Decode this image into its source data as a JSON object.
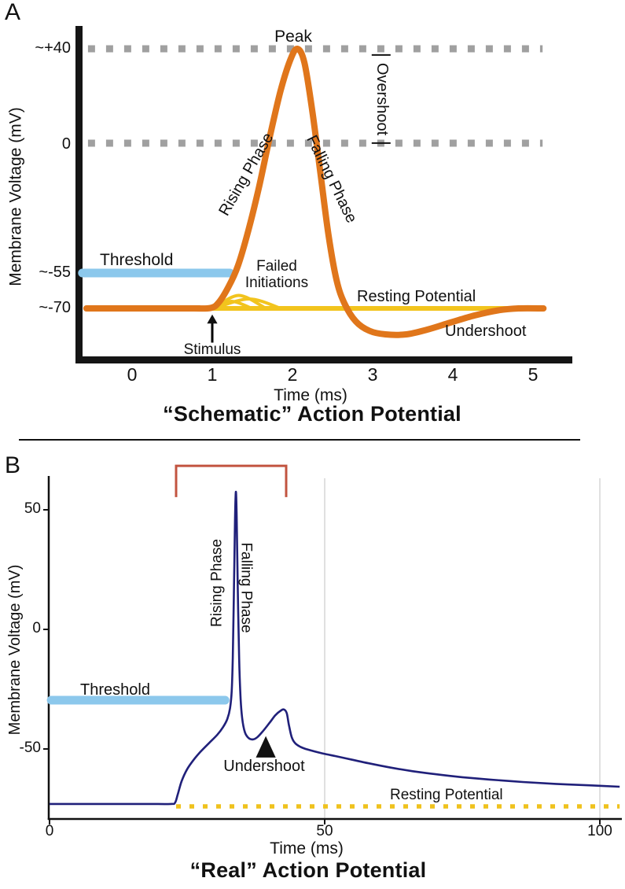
{
  "figure": {
    "panel_a_letter": "A",
    "panel_b_letter": "B"
  },
  "colors": {
    "ap_orange": "#E0761B",
    "resting_yellow": "#F2C41D",
    "threshold_blue": "#8CC8EC",
    "dotted_gray": "#A0A0A0",
    "trace_navy": "#20207A",
    "stimulus_red": "#C25440",
    "grid_gray": "#CFCFCF",
    "axis_black": "#151515"
  },
  "chart_data": [
    {
      "id": "schematic-action-potential",
      "type": "line",
      "title": "“Schematic” Action Potential",
      "xlabel": "Time (ms)",
      "ylabel": "Membrane Voltage (mV)",
      "x_ticks": [
        "0",
        "1",
        "2",
        "3",
        "4",
        "5"
      ],
      "x_tick_values": [
        0,
        1,
        2,
        3,
        4,
        5
      ],
      "y_ticks": [
        "~+40",
        "0",
        "~-55",
        "~-70"
      ],
      "y_tick_values": [
        40,
        0,
        -55,
        -70
      ],
      "xlim": [
        -0.6,
        5.3
      ],
      "ylim": [
        -92,
        46
      ],
      "grid": "dotted horizontal reference lines at +40 mV and 0 mV",
      "legend": "none",
      "annotations": {
        "peak": "Peak",
        "rising_phase": "Rising Phase",
        "falling_phase": "Falling Phase",
        "overshoot": "Overshoot",
        "threshold": "Threshold",
        "failed_initiations": "Failed\nInitiations",
        "resting_potential": "Resting Potential",
        "undershoot": "Undershoot",
        "stimulus": "Stimulus"
      },
      "series": [
        {
          "name": "overshoot-reference-dots",
          "color": "#A0A0A0",
          "points": [
            [
              -0.55,
              40
            ],
            [
              5.12,
              40
            ]
          ]
        },
        {
          "name": "zero-reference-dots",
          "color": "#A0A0A0",
          "points": [
            [
              -0.55,
              0
            ],
            [
              5.12,
              0
            ]
          ]
        },
        {
          "name": "threshold-bar",
          "color": "#8CC8EC",
          "level_mV": -55,
          "points": [
            [
              -0.62,
              -55
            ],
            [
              1.22,
              -55
            ]
          ]
        },
        {
          "name": "resting-potential-line",
          "color": "#F2C41D",
          "level_mV": -70,
          "points": [
            [
              1.0,
              -70
            ],
            [
              5.13,
              -70
            ]
          ]
        },
        {
          "name": "failed-initiation-1",
          "color": "#F2C41D",
          "points": [
            [
              1.03,
              -69.8
            ],
            [
              1.24,
              -67
            ],
            [
              1.48,
              -69.8
            ]
          ]
        },
        {
          "name": "failed-initiation-2",
          "color": "#F2C41D",
          "points": [
            [
              1.03,
              -69.8
            ],
            [
              1.33,
              -64.5
            ],
            [
              1.66,
              -69.8
            ]
          ]
        },
        {
          "name": "failed-initiation-3",
          "color": "#F2C41D",
          "points": [
            [
              1.04,
              -69.8
            ],
            [
              1.46,
              -66
            ],
            [
              1.84,
              -69.8
            ]
          ]
        },
        {
          "name": "action-potential",
          "color": "#E0761B",
          "points": [
            [
              -0.57,
              -70
            ],
            [
              0.2,
              -70
            ],
            [
              0.75,
              -70
            ],
            [
              0.98,
              -69.8
            ],
            [
              1.08,
              -67.5
            ],
            [
              1.2,
              -61
            ],
            [
              1.32,
              -52
            ],
            [
              1.45,
              -37
            ],
            [
              1.58,
              -19
            ],
            [
              1.72,
              3
            ],
            [
              1.85,
              22
            ],
            [
              1.97,
              35
            ],
            [
              2.06,
              40
            ],
            [
              2.15,
              34
            ],
            [
              2.25,
              13
            ],
            [
              2.35,
              -13
            ],
            [
              2.45,
              -39
            ],
            [
              2.55,
              -58
            ],
            [
              2.65,
              -68
            ],
            [
              2.79,
              -75.5
            ],
            [
              2.96,
              -79.5
            ],
            [
              3.16,
              -81
            ],
            [
              3.42,
              -81
            ],
            [
              3.68,
              -79
            ],
            [
              3.97,
              -76
            ],
            [
              4.27,
              -73
            ],
            [
              4.57,
              -70.8
            ],
            [
              4.82,
              -70
            ],
            [
              5.13,
              -70
            ]
          ]
        },
        {
          "name": "stimulus-arrow-shaft",
          "color": "#000000",
          "points": [
            [
              1.0,
              -84.5
            ],
            [
              1.0,
              -75.5
            ]
          ]
        }
      ],
      "polygons": [
        {
          "name": "stimulus-arrowhead",
          "points": [
            [
              1.0,
              -72.6
            ],
            [
              0.935,
              -76.4
            ],
            [
              1.065,
              -76.4
            ]
          ]
        }
      ]
    },
    {
      "id": "real-action-potential",
      "type": "line",
      "title": "“Real” Action Potential",
      "xlabel": "Time (ms)",
      "ylabel": "Membrane Voltage (mV)",
      "x_ticks": [
        "0",
        "50",
        "100"
      ],
      "x_tick_values": [
        0,
        50,
        100
      ],
      "y_ticks": [
        "50",
        "0",
        "-50"
      ],
      "y_tick_values": [
        50,
        0,
        -50
      ],
      "xlim": [
        0,
        104
      ],
      "ylim": [
        -80,
        70
      ],
      "grid": "light vertical gridlines at 50 ms and 100 ms",
      "legend": "none",
      "stimulus_pulse_ms": {
        "onset": 23,
        "offset": 43
      },
      "annotations": {
        "rising_phase": "Rising Phase",
        "falling_phase": "Falling Phase",
        "threshold": "Threshold",
        "undershoot": "Undershoot",
        "resting_potential": "Resting Potential"
      },
      "series": [
        {
          "name": "grid-50ms",
          "color": "#CFCFCF",
          "points": [
            [
              50,
              -78.9
            ],
            [
              50,
              63.2
            ]
          ]
        },
        {
          "name": "grid-100ms",
          "color": "#CFCFCF",
          "points": [
            [
              100,
              -78.9
            ],
            [
              100,
              63.2
            ]
          ]
        },
        {
          "name": "stimulus-pulse",
          "color": "#C25440",
          "points": [
            [
              23,
              55.3
            ],
            [
              23,
              68.4
            ],
            [
              43,
              68.4
            ],
            [
              43,
              55.3
            ]
          ]
        },
        {
          "name": "threshold-bar",
          "color": "#8CC8EC",
          "level_mV": -30,
          "points": [
            [
              0.3,
              -29.6
            ],
            [
              31.9,
              -29.6
            ]
          ]
        },
        {
          "name": "resting-potential-dots",
          "color": "#EFC21D",
          "level_mV": -74,
          "points": [
            [
              23,
              -74
            ],
            [
              103.6,
              -74
            ]
          ]
        },
        {
          "name": "membrane-voltage-trace",
          "color": "#20207A",
          "points": [
            [
              0,
              -73
            ],
            [
              6,
              -73
            ],
            [
              12,
              -73
            ],
            [
              18,
              -73
            ],
            [
              22,
              -73
            ],
            [
              22.8,
              -72.5
            ],
            [
              23.3,
              -69
            ],
            [
              24,
              -63.5
            ],
            [
              25,
              -58.5
            ],
            [
              26.2,
              -54.5
            ],
            [
              27.5,
              -51
            ],
            [
              29,
              -47.5
            ],
            [
              30.5,
              -44
            ],
            [
              31.5,
              -41
            ],
            [
              32.3,
              -37.5
            ],
            [
              32.8,
              -33
            ],
            [
              33.1,
              -26
            ],
            [
              33.3,
              -12
            ],
            [
              33.5,
              15
            ],
            [
              33.7,
              45
            ],
            [
              33.85,
              57.5
            ],
            [
              34,
              48
            ],
            [
              34.2,
              18
            ],
            [
              34.45,
              -12
            ],
            [
              34.7,
              -28
            ],
            [
              35,
              -37
            ],
            [
              35.5,
              -43
            ],
            [
              36.2,
              -45.5
            ],
            [
              37,
              -46
            ],
            [
              37.8,
              -45
            ],
            [
              38.8,
              -42.5
            ],
            [
              40,
              -39
            ],
            [
              41,
              -36
            ],
            [
              42,
              -34
            ],
            [
              42.6,
              -33.5
            ],
            [
              43.1,
              -35
            ],
            [
              43.5,
              -40
            ],
            [
              44,
              -45
            ],
            [
              44.6,
              -47.5
            ],
            [
              45.5,
              -49
            ],
            [
              47,
              -50.3
            ],
            [
              49.5,
              -51.8
            ],
            [
              52,
              -53
            ],
            [
              55,
              -54.5
            ],
            [
              58,
              -56
            ],
            [
              62,
              -57.8
            ],
            [
              66,
              -59.3
            ],
            [
              70,
              -60.5
            ],
            [
              75,
              -61.8
            ],
            [
              80,
              -62.8
            ],
            [
              86,
              -63.8
            ],
            [
              92,
              -64.6
            ],
            [
              98,
              -65.2
            ],
            [
              103.6,
              -65.8
            ]
          ]
        }
      ],
      "polygons": [
        {
          "name": "undershoot-arrow",
          "points": [
            [
              39.3,
              -44.6
            ],
            [
              37.5,
              -53.6
            ],
            [
              41.1,
              -53.6
            ]
          ]
        }
      ]
    }
  ]
}
